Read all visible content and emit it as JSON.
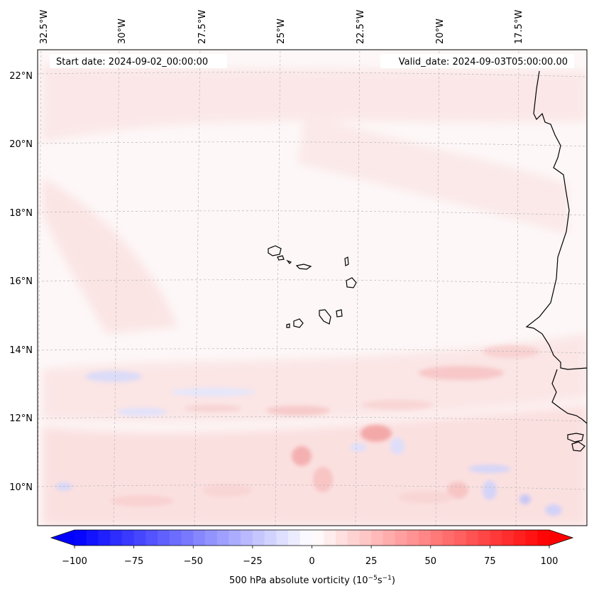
{
  "map": {
    "start_label": "Start date: 2024-09-02_00:00:00",
    "valid_label": "Valid_date: 2024-09-03T05:00:00.00",
    "longitude_labels": [
      "32.5°W",
      "30°W",
      "27.5°W",
      "25°W",
      "22.5°W",
      "20°W",
      "17.5°W"
    ],
    "latitude_labels": [
      "22°N",
      "20°N",
      "18°N",
      "16°N",
      "14°N",
      "12°N",
      "10°N"
    ],
    "field": "500 hPa absolute vorticity"
  },
  "colorbar": {
    "label": "500 hPa absolute vorticity (10",
    "label_exp1": "−5",
    "label_mid": "s",
    "label_exp2": "−1",
    "label_end": ")",
    "ticks": [
      "−100",
      "−75",
      "−50",
      "−25",
      "0",
      "25",
      "50",
      "75",
      "100"
    ],
    "tick_values": [
      -100,
      -75,
      -50,
      -25,
      0,
      25,
      50,
      75,
      100
    ],
    "min": -100,
    "max": 100,
    "step": 5,
    "colors": {
      "negative": "#0000ff",
      "neutral": "#ffffff",
      "positive": "#ff0000"
    }
  }
}
